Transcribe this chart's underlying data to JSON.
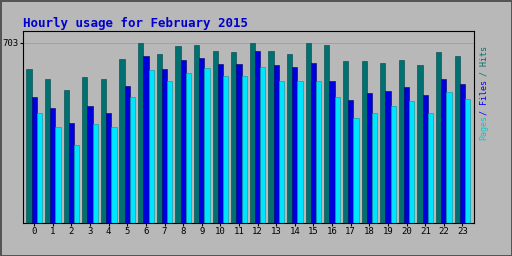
{
  "title": "Hourly usage for February 2015",
  "title_color": "#0000cc",
  "background_color": "#b8b8b8",
  "plot_bg_color": "#b8b8b8",
  "hours": [
    0,
    1,
    2,
    3,
    4,
    5,
    6,
    7,
    8,
    9,
    10,
    11,
    12,
    13,
    14,
    15,
    16,
    17,
    18,
    19,
    20,
    21,
    22,
    23
  ],
  "hits": [
    600,
    560,
    520,
    570,
    560,
    640,
    703,
    660,
    690,
    695,
    670,
    665,
    703,
    670,
    660,
    703,
    695,
    630,
    630,
    625,
    635,
    615,
    665,
    650
  ],
  "files": [
    490,
    450,
    390,
    455,
    430,
    535,
    650,
    600,
    635,
    645,
    620,
    620,
    670,
    615,
    610,
    625,
    555,
    480,
    505,
    515,
    530,
    500,
    560,
    540
  ],
  "pages": [
    430,
    375,
    305,
    385,
    375,
    490,
    595,
    555,
    585,
    605,
    575,
    575,
    610,
    555,
    555,
    555,
    490,
    410,
    430,
    455,
    475,
    430,
    510,
    485
  ],
  "hits_color": "#007070",
  "files_color": "#0000dd",
  "pages_color": "#00e5ff",
  "bar_width": 0.28,
  "ylim": [
    0,
    750
  ],
  "ytick_val": 703,
  "border_color": "#000000",
  "grid_color": "#999999",
  "ylabel_pages": "Pages",
  "ylabel_files": "Files",
  "ylabel_hits": "Hits"
}
